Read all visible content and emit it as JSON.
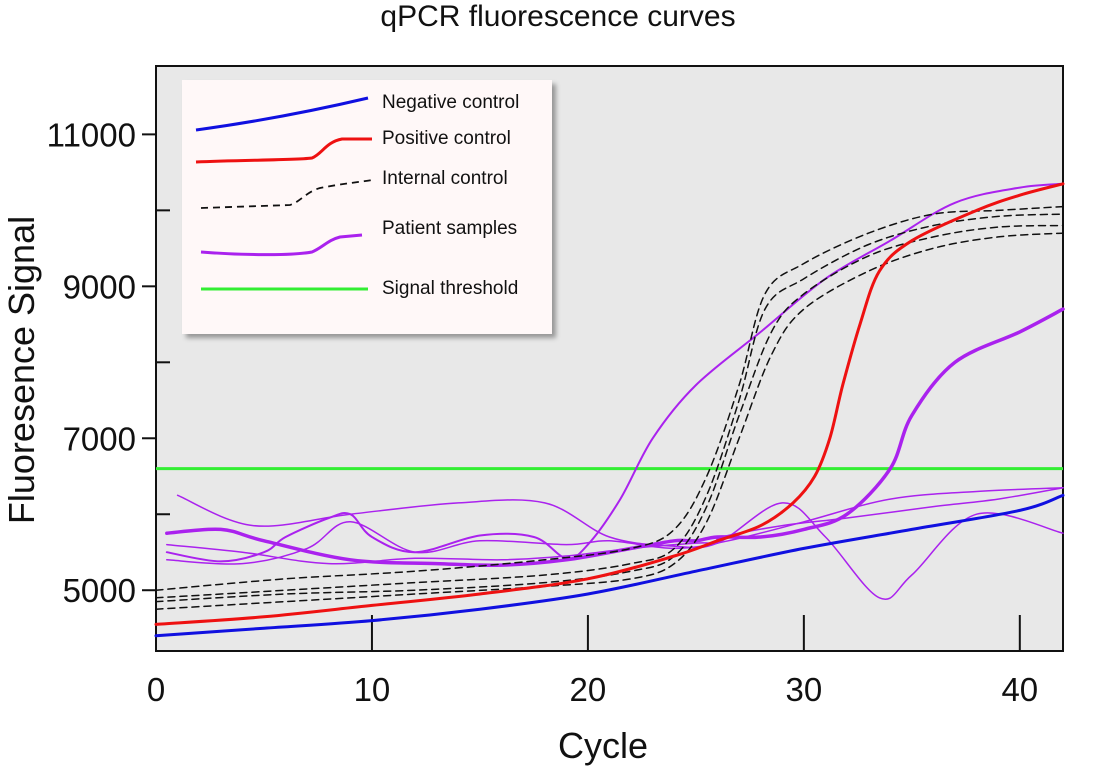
{
  "chart_data": {
    "type": "line",
    "title": "qPCR fluorescence curves",
    "xlabel": "Cycle",
    "ylabel": "Fluoresence Signal",
    "xlim": [
      0,
      42
    ],
    "ylim": [
      4200,
      11900
    ],
    "x_ticks": [
      0,
      10,
      20,
      30,
      40
    ],
    "y_ticks": [
      5000,
      7000,
      9000,
      11000
    ],
    "grid": false,
    "plot_background": "#e8e8e8",
    "legend_position": "top-left",
    "threshold": 6600,
    "legend": [
      {
        "label": "Negative control",
        "color": "#1010e0",
        "style": "solid"
      },
      {
        "label": "Positive control",
        "color": "#ee1111",
        "style": "solid"
      },
      {
        "label": "Internal control",
        "color": "#111111",
        "style": "dashed"
      },
      {
        "label": "Patient samples",
        "color": "#aa22ee",
        "style": "solid"
      },
      {
        "label": "Signal threshold",
        "color": "#33ee33",
        "style": "solid"
      }
    ],
    "series": [
      {
        "group": "Patient samples",
        "color": "#aa22ee",
        "width": 1.5,
        "points": [
          [
            0.5,
            5600
          ],
          [
            4,
            5500
          ],
          [
            8,
            5350
          ],
          [
            12,
            5420
          ],
          [
            16,
            5400
          ],
          [
            19,
            5450
          ],
          [
            22,
            5550
          ],
          [
            25,
            5620
          ],
          [
            26,
            5620
          ],
          [
            26.2,
            5700
          ],
          [
            29,
            5850
          ],
          [
            32,
            5950
          ],
          [
            36,
            6100
          ],
          [
            39,
            6200
          ],
          [
            42,
            6350
          ]
        ]
      },
      {
        "group": "Patient samples",
        "color": "#aa22ee",
        "width": 1.5,
        "points": [
          [
            1,
            6250
          ],
          [
            4.5,
            5850
          ],
          [
            9,
            6000
          ],
          [
            14,
            6150
          ],
          [
            18,
            6150
          ],
          [
            21,
            5700
          ],
          [
            24,
            5580
          ],
          [
            26,
            5620
          ],
          [
            29,
            6150
          ],
          [
            31,
            5700
          ],
          [
            33.5,
            4900
          ],
          [
            35,
            5200
          ],
          [
            38,
            6000
          ],
          [
            42,
            5750
          ]
        ]
      },
      {
        "group": "Patient samples",
        "color": "#aa22ee",
        "width": 1.5,
        "points": [
          [
            0.5,
            5400
          ],
          [
            4,
            5350
          ],
          [
            7,
            5550
          ],
          [
            9,
            5900
          ],
          [
            12,
            5500
          ],
          [
            15,
            5650
          ],
          [
            19,
            5600
          ],
          [
            21,
            5650
          ],
          [
            24,
            5550
          ],
          [
            26.5,
            5650
          ],
          [
            30,
            5900
          ],
          [
            34,
            6200
          ],
          [
            38,
            6300
          ],
          [
            42,
            6350
          ]
        ]
      },
      {
        "group": "Patient samples",
        "color": "#aa22ee",
        "width": 2,
        "points": [
          [
            0.5,
            5500
          ],
          [
            3,
            5380
          ],
          [
            5,
            5500
          ],
          [
            6,
            5700
          ],
          [
            8,
            5950
          ],
          [
            9,
            6000
          ],
          [
            10,
            5700
          ],
          [
            12,
            5500
          ],
          [
            15,
            5720
          ],
          [
            17.5,
            5700
          ],
          [
            19,
            5420
          ],
          [
            20,
            5600
          ],
          [
            21.5,
            6200
          ],
          [
            23,
            7000
          ],
          [
            25,
            7700
          ],
          [
            28,
            8400
          ],
          [
            31,
            9100
          ],
          [
            34,
            9600
          ],
          [
            37,
            10100
          ],
          [
            40,
            10300
          ],
          [
            42,
            10350
          ]
        ]
      },
      {
        "group": "Patient samples",
        "color": "#aa22ee",
        "width": 3.5,
        "points": [
          [
            0.5,
            5750
          ],
          [
            3,
            5800
          ],
          [
            5,
            5650
          ],
          [
            9,
            5400
          ],
          [
            13,
            5350
          ],
          [
            16,
            5330
          ],
          [
            19,
            5400
          ],
          [
            22,
            5550
          ],
          [
            24,
            5650
          ],
          [
            25,
            5650
          ],
          [
            26,
            5700
          ],
          [
            28,
            5700
          ],
          [
            30,
            5800
          ],
          [
            32,
            6000
          ],
          [
            34,
            6600
          ],
          [
            35,
            7300
          ],
          [
            37,
            8000
          ],
          [
            40,
            8400
          ],
          [
            42,
            8700
          ]
        ]
      },
      {
        "group": "Internal control",
        "color": "#111111",
        "width": 1.5,
        "dash": "7,5",
        "points": [
          [
            0,
            4750
          ],
          [
            6,
            4850
          ],
          [
            12,
            4950
          ],
          [
            18,
            5050
          ],
          [
            22,
            5150
          ],
          [
            24,
            5350
          ],
          [
            25.5,
            5900
          ],
          [
            27,
            7000
          ],
          [
            28.5,
            8100
          ],
          [
            30,
            8700
          ],
          [
            33,
            9200
          ],
          [
            36,
            9500
          ],
          [
            39,
            9650
          ],
          [
            42,
            9700
          ]
        ]
      },
      {
        "group": "Internal control",
        "color": "#111111",
        "width": 1.5,
        "dash": "7,5",
        "points": [
          [
            0,
            4850
          ],
          [
            6,
            4950
          ],
          [
            12,
            5000
          ],
          [
            18,
            5100
          ],
          [
            22,
            5250
          ],
          [
            24,
            5450
          ],
          [
            25.5,
            6100
          ],
          [
            27,
            7300
          ],
          [
            28.5,
            8400
          ],
          [
            30,
            8900
          ],
          [
            33,
            9400
          ],
          [
            36,
            9650
          ],
          [
            39,
            9780
          ],
          [
            42,
            9800
          ]
        ]
      },
      {
        "group": "Internal control",
        "color": "#111111",
        "width": 1.5,
        "dash": "7,5",
        "points": [
          [
            0,
            4900
          ],
          [
            6,
            5000
          ],
          [
            12,
            5100
          ],
          [
            18,
            5200
          ],
          [
            22,
            5350
          ],
          [
            24,
            5550
          ],
          [
            25.5,
            6250
          ],
          [
            27,
            7500
          ],
          [
            28.2,
            8700
          ],
          [
            30,
            9100
          ],
          [
            33,
            9550
          ],
          [
            36,
            9800
          ],
          [
            39,
            9920
          ],
          [
            42,
            9950
          ]
        ]
      },
      {
        "group": "Internal control",
        "color": "#111111",
        "width": 1.5,
        "dash": "7,5",
        "points": [
          [
            0,
            5000
          ],
          [
            6,
            5150
          ],
          [
            12,
            5250
          ],
          [
            18,
            5400
          ],
          [
            22,
            5550
          ],
          [
            24,
            5800
          ],
          [
            25.5,
            6500
          ],
          [
            27,
            7700
          ],
          [
            28.2,
            8900
          ],
          [
            30,
            9300
          ],
          [
            33,
            9700
          ],
          [
            36,
            9950
          ],
          [
            39,
            10000
          ],
          [
            42,
            10050
          ]
        ]
      },
      {
        "group": "Negative control",
        "color": "#1010e0",
        "width": 3,
        "points": [
          [
            0,
            4400
          ],
          [
            5,
            4500
          ],
          [
            10,
            4600
          ],
          [
            15,
            4750
          ],
          [
            20,
            4950
          ],
          [
            25,
            5250
          ],
          [
            30,
            5550
          ],
          [
            35,
            5800
          ],
          [
            40,
            6050
          ],
          [
            42,
            6250
          ]
        ]
      },
      {
        "group": "Positive control",
        "color": "#ee1111",
        "width": 3,
        "points": [
          [
            0,
            4550
          ],
          [
            5,
            4650
          ],
          [
            10,
            4800
          ],
          [
            15,
            4950
          ],
          [
            20,
            5150
          ],
          [
            24,
            5450
          ],
          [
            26,
            5650
          ],
          [
            28,
            5850
          ],
          [
            29.5,
            6150
          ],
          [
            30.5,
            6500
          ],
          [
            31.2,
            7000
          ],
          [
            31.8,
            7700
          ],
          [
            32.6,
            8500
          ],
          [
            33.5,
            9200
          ],
          [
            35,
            9600
          ],
          [
            38,
            10000
          ],
          [
            40,
            10200
          ],
          [
            42,
            10350
          ]
        ]
      }
    ]
  }
}
